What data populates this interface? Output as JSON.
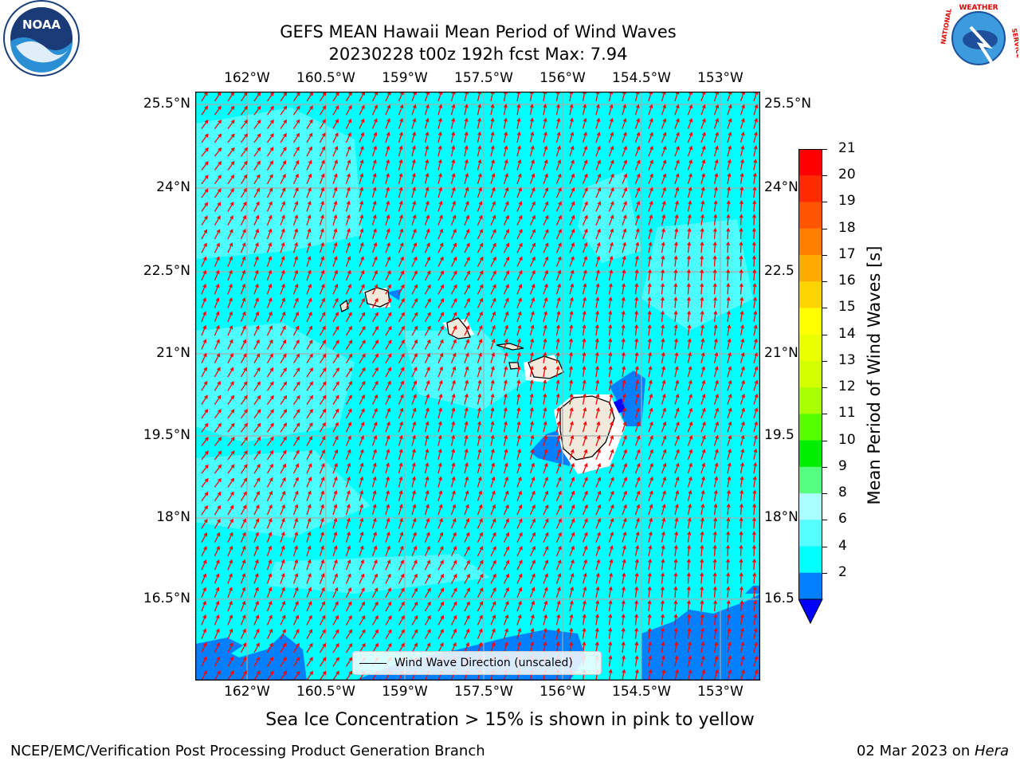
{
  "header": {
    "title_line1": "GEFS MEAN Hawaii Mean Period of Wind Waves",
    "title_line2": "20230228 t00z 192h fcst   Max: 7.94"
  },
  "logos": {
    "left": {
      "text": "NOAA",
      "ring_text": "NATIONAL OCEANIC AND ATMOSPHERIC ADMINISTRATION · U.S. DEPARTMENT OF COMMERCE",
      "icon": "noaa-logo-icon"
    },
    "right": {
      "text": "NATIONAL WEATHER SERVICE",
      "icon": "nws-logo-icon"
    }
  },
  "map": {
    "lon_ticks": [
      "162°W",
      "160.5°W",
      "159°W",
      "157.5°W",
      "156°W",
      "154.5°W",
      "153°W"
    ],
    "lat_ticks": [
      "25.5°N",
      "24°N",
      "22.5°N",
      "21°N",
      "19.5°N",
      "18°N",
      "16.5°N"
    ],
    "lat_ticks_right": [
      "25.5°N",
      "24°N",
      "22.5",
      "21°N",
      "19.5",
      "18°N",
      "16.5"
    ],
    "legend_label": "Wind Wave Direction (unscaled)",
    "arrow_color": "#ff0000",
    "ocean_color": "#00ffff",
    "land_color": "#efeadb"
  },
  "colorbar": {
    "label": "Mean Period of Wind Waves [s]",
    "ticks": [
      "21",
      "20",
      "19",
      "18",
      "17",
      "16",
      "15",
      "14",
      "13",
      "12",
      "11",
      "10",
      "9",
      "8",
      "6",
      "4",
      "2"
    ],
    "colors": [
      "#ff0000",
      "#ff2a00",
      "#ff5500",
      "#ff7f00",
      "#ffaa00",
      "#ffd400",
      "#ffff00",
      "#eaff00",
      "#d4ff00",
      "#aaff00",
      "#55ff00",
      "#00ee00",
      "#55ff7f",
      "#aaffff",
      "#55ffff",
      "#00ffff",
      "#0080ff"
    ],
    "under_color": "#0000ff"
  },
  "note": "Sea Ice Concentration > 15% is shown in pink to yellow",
  "footer": {
    "left": "NCEP/EMC/Verification Post Processing Product Generation Branch",
    "right_date": "02 Mar 2023 on ",
    "right_host": "Hera"
  }
}
